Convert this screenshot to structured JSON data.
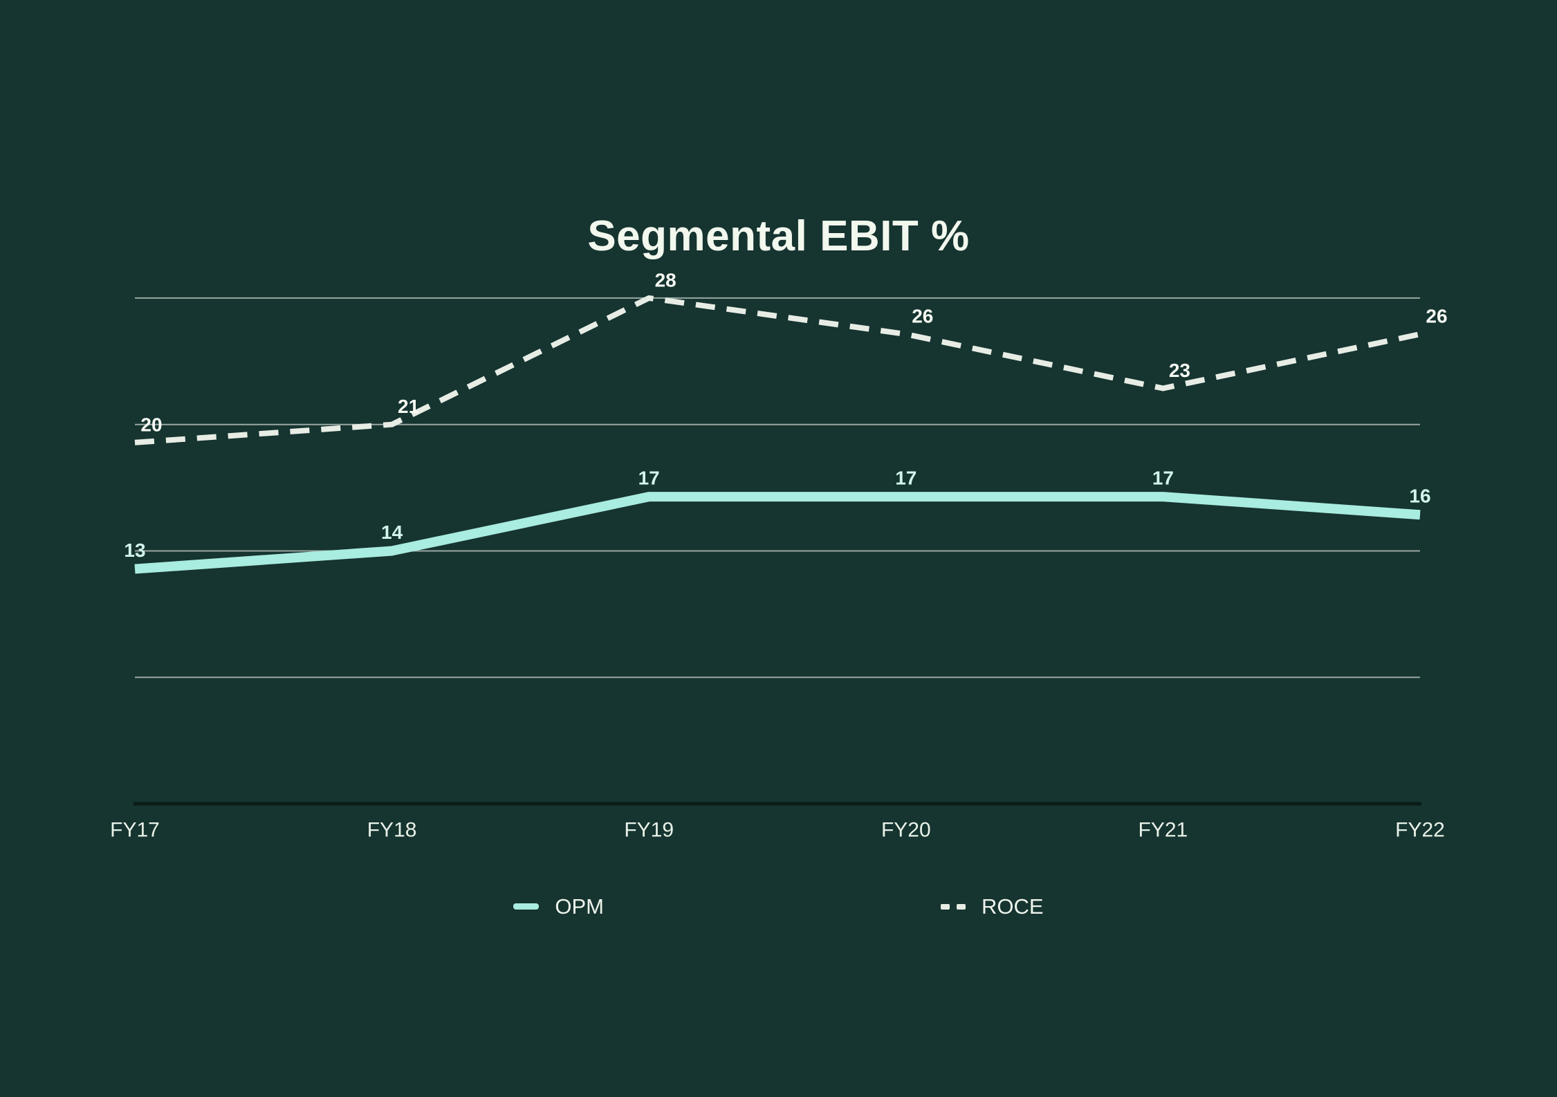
{
  "chart_data": {
    "type": "line",
    "title": "Segmental EBIT %",
    "categories": [
      "FY17",
      "FY18",
      "FY19",
      "FY20",
      "FY21",
      "FY22"
    ],
    "series": [
      {
        "name": "OPM",
        "values": [
          13,
          14,
          17,
          17,
          17,
          16
        ],
        "color": "#a9ece0",
        "line_style": "solid",
        "label_color": "#d3f4ec"
      },
      {
        "name": "ROCE",
        "values": [
          20,
          21,
          28,
          26,
          23,
          26
        ],
        "color": "#e7ede5",
        "line_style": "dashed",
        "label_color": "#f6faf3"
      }
    ],
    "ylim": [
      0,
      28
    ],
    "gridline_values": [
      7,
      14,
      21,
      28
    ],
    "grid": true,
    "data_labels": true,
    "legend_position": "bottom",
    "background_color": "#163430",
    "gridline_color": "#bcc6bf",
    "axis_color": "#0a1c18",
    "x_label_color": "#e9f2e8"
  }
}
